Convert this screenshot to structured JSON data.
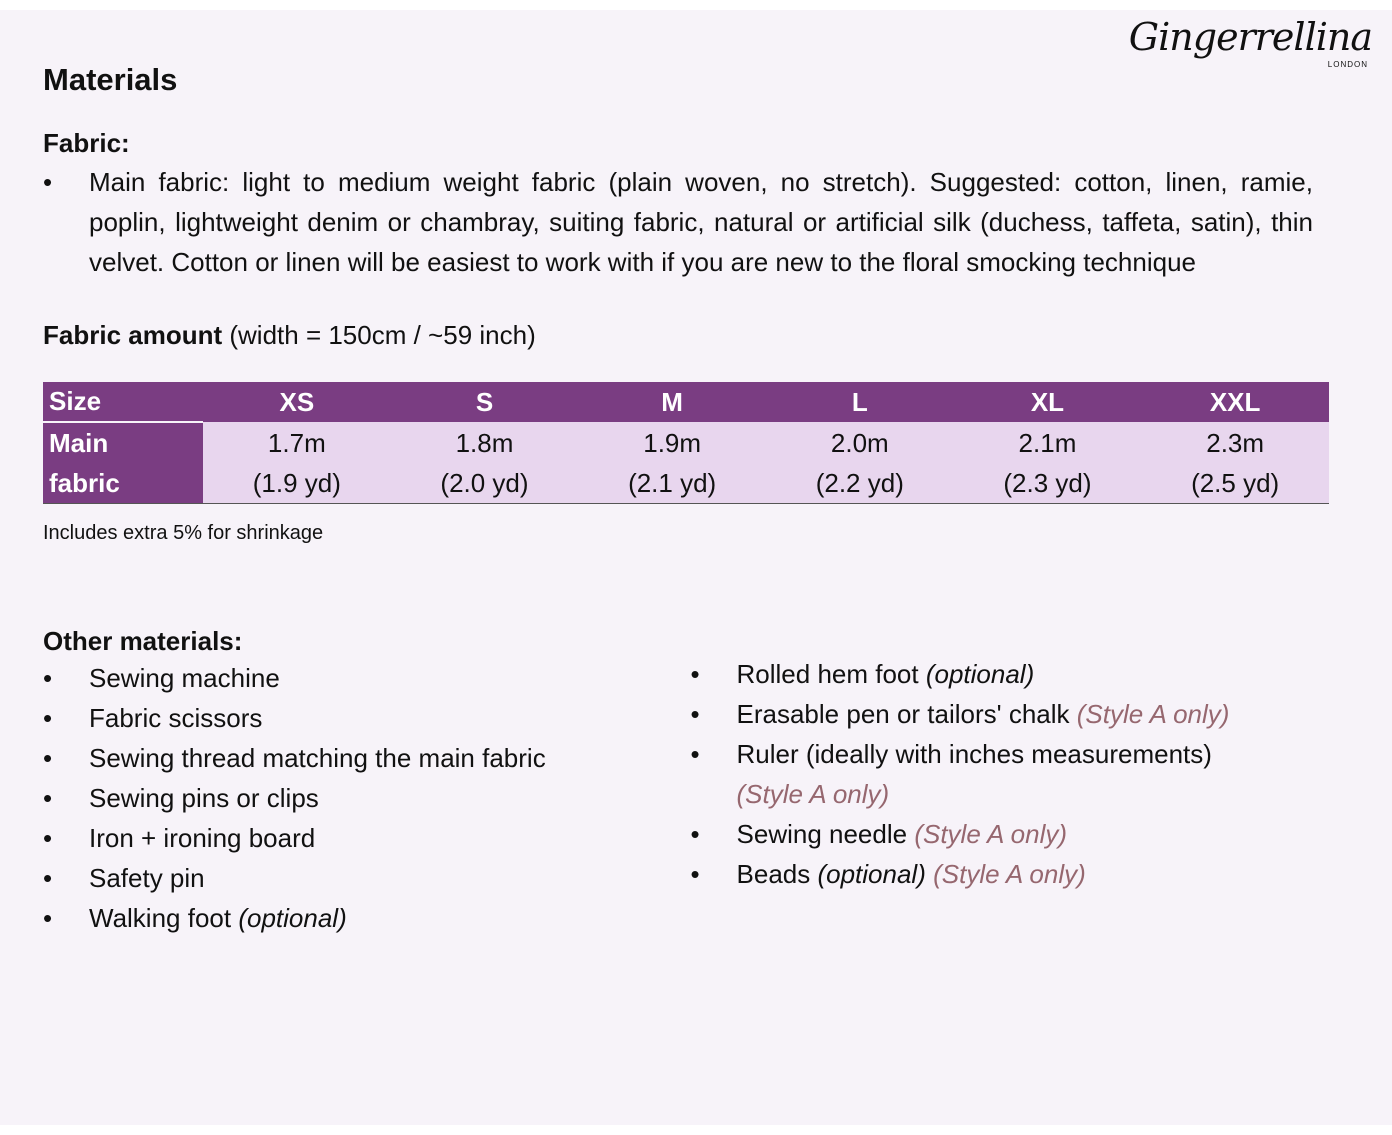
{
  "logo": {
    "name": "Gingerrellina",
    "sub": "LONDON"
  },
  "title": "Materials",
  "fabric": {
    "heading": "Fabric:",
    "items": [
      "Main fabric: light to medium weight fabric (plain woven, no stretch). Suggested: cotton, linen, ramie, poplin, lightweight denim or chambray, suiting fabric, natural or artificial silk (duchess, taffeta, satin), thin velvet. Cotton or linen will be easiest to work with if you are new to the floral smocking technique"
    ]
  },
  "amount": {
    "heading": "Fabric amount",
    "detail": " (width = 150cm / ~59 inch)"
  },
  "table": {
    "header": [
      "Size",
      "XS",
      "S",
      "M",
      "L",
      "XL",
      "XXL"
    ],
    "row_label": [
      "Main",
      "fabric"
    ],
    "metric": [
      "1.7m",
      "1.8m",
      "1.9m",
      "2.0m",
      "2.1m",
      "2.3m"
    ],
    "imperial": [
      "(1.9 yd)",
      "(2.0 yd)",
      "(2.1 yd)",
      "(2.2 yd)",
      "(2.3 yd)",
      "(2.5 yd)"
    ]
  },
  "note": "Includes extra 5% for shrinkage",
  "other": {
    "heading": "Other materials:",
    "left": [
      {
        "text": "Sewing machine"
      },
      {
        "text": "Fabric scissors"
      },
      {
        "text": "Sewing thread matching the main fabric"
      },
      {
        "text": "Sewing pins or clips"
      },
      {
        "text": "Iron + ironing board"
      },
      {
        "text": "Safety pin"
      },
      {
        "text": "Walking foot ",
        "opt": "(optional)"
      }
    ],
    "right": [
      {
        "text": "Rolled hem foot ",
        "opt": "(optional)"
      },
      {
        "text": "Erasable pen or tailors' chalk ",
        "style": "(Style A only)"
      },
      {
        "text": "Ruler (ideally with inches measurements)",
        "style": "(Style A only)"
      },
      {
        "text": "Sewing needle ",
        "style": "(Style A only)"
      },
      {
        "text": "Beads ",
        "opt": "(optional) ",
        "style": "(Style A only)"
      }
    ]
  },
  "colors": {
    "header": "#7a3d82",
    "cell": "#e8d6ee",
    "style_note": "#96676f",
    "background": "#f7f3f9"
  }
}
